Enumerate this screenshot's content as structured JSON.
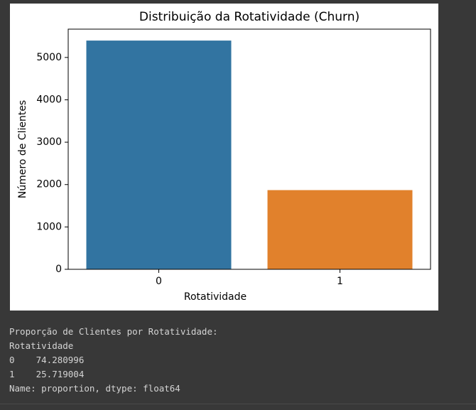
{
  "chart_data": {
    "type": "bar",
    "title": "Distribuição da Rotatividade (Churn)",
    "x_label": "Rotatividade",
    "y_label": "Número de Clientes",
    "categories": [
      "0",
      "1"
    ],
    "values": [
      5398,
      1869
    ],
    "colors": [
      "#3274a1",
      "#e1812c"
    ],
    "ylim": [
      0,
      5668
    ],
    "yticks": [
      0,
      1000,
      2000,
      3000,
      4000,
      5000
    ],
    "grid": false
  },
  "output_lines": [
    "Proporção de Clientes por Rotatividade:",
    "Rotatividade",
    "0    74.280996",
    "1    25.719004",
    "Name: proportion, dtype: float64"
  ]
}
